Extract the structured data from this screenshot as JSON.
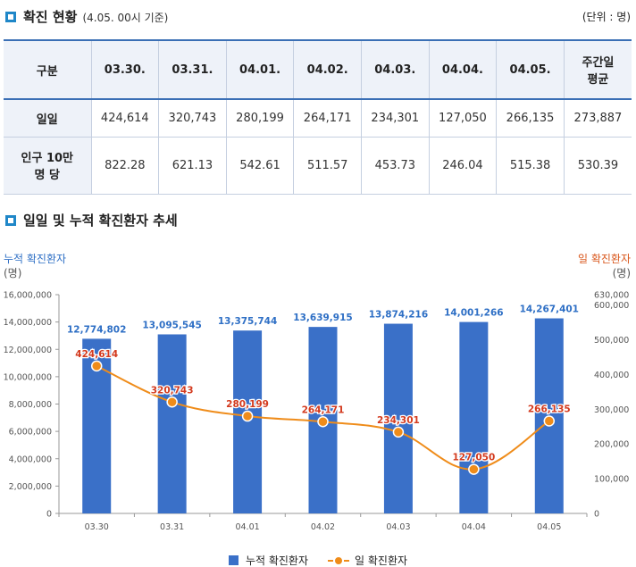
{
  "status": {
    "title": "확진 현황",
    "subtitle": "(4.05. 00시 기준)",
    "unit": "(단위 : 명)",
    "table": {
      "header_first": "구분",
      "columns": [
        "03.30.",
        "03.31.",
        "04.01.",
        "04.02.",
        "04.03.",
        "04.04.",
        "04.05."
      ],
      "avg_header_line1": "주간일",
      "avg_header_line2": "평균",
      "rows": [
        {
          "label_line1": "일일",
          "label_line2": "",
          "values": [
            "424,614",
            "320,743",
            "280,199",
            "264,171",
            "234,301",
            "127,050",
            "266,135"
          ],
          "avg": "273,887"
        },
        {
          "label_line1": "인구 10만",
          "label_line2": "명 당",
          "values": [
            "822.28",
            "621.13",
            "542.61",
            "511.57",
            "453.73",
            "246.04",
            "515.38"
          ],
          "avg": "530.39"
        }
      ]
    }
  },
  "trend": {
    "title": "일일 및 누적 확진환자 추세",
    "left_axis_title": "누적 확진환자",
    "left_axis_unit": "(명)",
    "right_axis_title": "일 확진환자",
    "right_axis_unit": "(명)",
    "legend": {
      "bar": "누적 확진환자",
      "line": "일 확진환자"
    }
  },
  "colors": {
    "bar": "#3a70c8",
    "line": "#ef8c1a",
    "bar_label": "#2e6fc5",
    "line_label": "#d33a1e",
    "accent": "#1f87c8"
  },
  "chart_data": {
    "type": "bar",
    "categories": [
      "03.30",
      "03.31",
      "04.01",
      "04.02",
      "04.03",
      "04.04",
      "04.05"
    ],
    "series": [
      {
        "name": "누적 확진환자",
        "type": "bar",
        "axis": "left",
        "values": [
          12774802,
          13095545,
          13375744,
          13639915,
          13874216,
          14001266,
          14267401
        ],
        "labels": [
          "12,774,802",
          "13,095,545",
          "13,375,744",
          "13,639,915",
          "13,874,216",
          "14,001,266",
          "14,267,401"
        ]
      },
      {
        "name": "일 확진환자",
        "type": "line",
        "axis": "right",
        "values": [
          424614,
          320743,
          280199,
          264171,
          234301,
          127050,
          266135
        ],
        "labels": [
          "424,614",
          "320,743",
          "280,199",
          "264,171",
          "234,301",
          "127,050",
          "266,135"
        ]
      }
    ],
    "left_axis": {
      "min": 0,
      "max": 16000000,
      "ticks": [
        0,
        2000000,
        4000000,
        6000000,
        8000000,
        10000000,
        12000000,
        14000000,
        16000000
      ],
      "tick_labels": [
        "0",
        "2,000,000",
        "4,000,000",
        "6,000,000",
        "8,000,000",
        "10,000,000",
        "12,000,000",
        "14,000,000",
        "16,000,000"
      ]
    },
    "right_axis": {
      "min": 0,
      "max": 630000,
      "ticks": [
        0,
        100000,
        200000,
        300000,
        400000,
        500000,
        600000,
        630000
      ],
      "tick_labels": [
        "0",
        "100,000",
        "200,000",
        "300,000",
        "400,000",
        "500,000",
        "600,000",
        "630,000"
      ]
    },
    "legend_position": "bottom"
  }
}
